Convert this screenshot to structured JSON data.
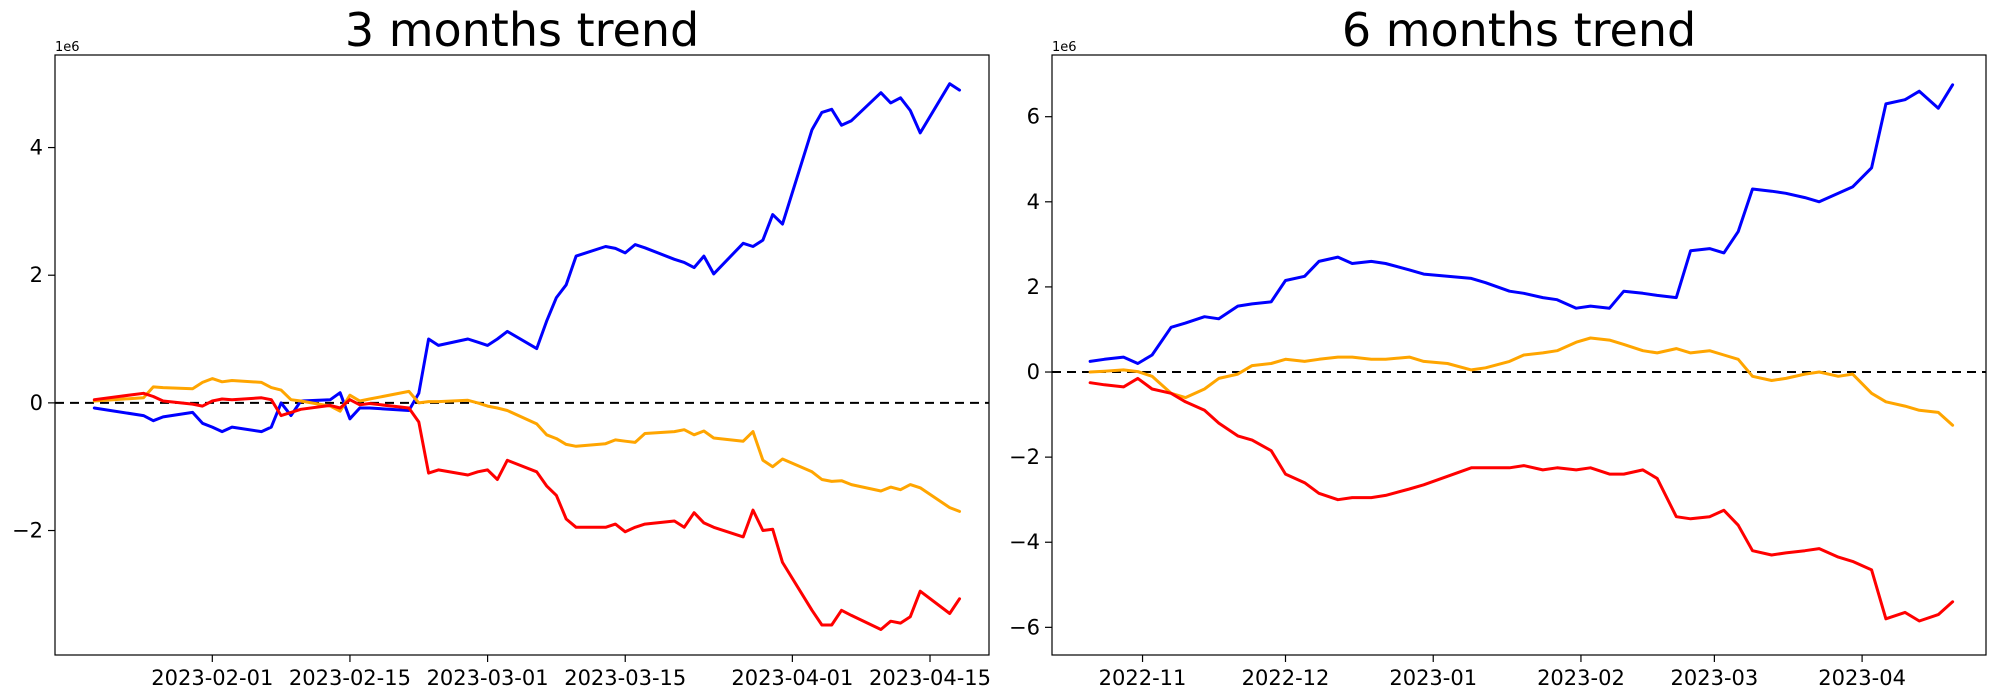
{
  "chart_data": [
    {
      "type": "line",
      "title": "3 months trend",
      "xlabel": "",
      "ylabel": "",
      "y_offset_label": "1e6",
      "x_type": "date",
      "xlim": [
        "2023-01-16",
        "2023-04-21"
      ],
      "ylim": [
        -3950000,
        5450000
      ],
      "x_ticks": [
        "2023-02-01",
        "2023-02-15",
        "2023-03-01",
        "2023-03-15",
        "2023-04-01",
        "2023-04-15"
      ],
      "y_ticks": [
        -2000000,
        0,
        2000000,
        4000000
      ],
      "y_tick_labels": [
        "−2",
        "0",
        "2",
        "4"
      ],
      "zero_reference_line": true,
      "grid": false,
      "legend": "none",
      "series": [
        {
          "color": "#0000ff",
          "x": [
            "2023-01-20",
            "2023-01-25",
            "2023-01-26",
            "2023-01-27",
            "2023-01-30",
            "2023-01-31",
            "2023-02-01",
            "2023-02-02",
            "2023-02-03",
            "2023-02-06",
            "2023-02-07",
            "2023-02-08",
            "2023-02-09",
            "2023-02-10",
            "2023-02-13",
            "2023-02-14",
            "2023-02-15",
            "2023-02-16",
            "2023-02-17",
            "2023-02-21",
            "2023-02-22",
            "2023-02-23",
            "2023-02-24",
            "2023-02-27",
            "2023-02-28",
            "2023-03-01",
            "2023-03-02",
            "2023-03-03",
            "2023-03-06",
            "2023-03-07",
            "2023-03-08",
            "2023-03-09",
            "2023-03-10",
            "2023-03-13",
            "2023-03-14",
            "2023-03-15",
            "2023-03-16",
            "2023-03-17",
            "2023-03-20",
            "2023-03-21",
            "2023-03-22",
            "2023-03-23",
            "2023-03-24",
            "2023-03-27",
            "2023-03-28",
            "2023-03-29",
            "2023-03-30",
            "2023-03-31",
            "2023-04-03",
            "2023-04-04",
            "2023-04-05",
            "2023-04-06",
            "2023-04-07",
            "2023-04-10",
            "2023-04-11",
            "2023-04-12",
            "2023-04-13",
            "2023-04-14",
            "2023-04-17",
            "2023-04-18"
          ],
          "y": [
            -80000,
            -200000,
            -280000,
            -220000,
            -150000,
            -320000,
            -380000,
            -450000,
            -380000,
            -450000,
            -380000,
            0,
            -200000,
            30000,
            50000,
            160000,
            -250000,
            -80000,
            -80000,
            -120000,
            150000,
            1000000,
            900000,
            1000000,
            950000,
            900000,
            1000000,
            1120000,
            850000,
            1280000,
            1650000,
            1850000,
            2300000,
            2450000,
            2420000,
            2350000,
            2480000,
            2430000,
            2250000,
            2200000,
            2120000,
            2300000,
            2020000,
            2500000,
            2450000,
            2550000,
            2950000,
            2800000,
            4280000,
            4550000,
            4600000,
            4350000,
            4420000,
            4860000,
            4700000,
            4780000,
            4580000,
            4230000,
            5000000,
            4900000
          ]
        },
        {
          "color": "#ffa500",
          "x": [
            "2023-01-20",
            "2023-01-25",
            "2023-01-26",
            "2023-01-27",
            "2023-01-30",
            "2023-01-31",
            "2023-02-01",
            "2023-02-02",
            "2023-02-03",
            "2023-02-06",
            "2023-02-07",
            "2023-02-08",
            "2023-02-09",
            "2023-02-10",
            "2023-02-13",
            "2023-02-14",
            "2023-02-15",
            "2023-02-16",
            "2023-02-17",
            "2023-02-21",
            "2023-02-22",
            "2023-02-23",
            "2023-02-24",
            "2023-02-27",
            "2023-02-28",
            "2023-03-01",
            "2023-03-02",
            "2023-03-03",
            "2023-03-06",
            "2023-03-07",
            "2023-03-08",
            "2023-03-09",
            "2023-03-10",
            "2023-03-13",
            "2023-03-14",
            "2023-03-15",
            "2023-03-16",
            "2023-03-17",
            "2023-03-20",
            "2023-03-21",
            "2023-03-22",
            "2023-03-23",
            "2023-03-24",
            "2023-03-27",
            "2023-03-28",
            "2023-03-29",
            "2023-03-30",
            "2023-03-31",
            "2023-04-03",
            "2023-04-04",
            "2023-04-05",
            "2023-04-06",
            "2023-04-07",
            "2023-04-10",
            "2023-04-11",
            "2023-04-12",
            "2023-04-13",
            "2023-04-14",
            "2023-04-17",
            "2023-04-18"
          ],
          "y": [
            30000,
            80000,
            250000,
            240000,
            220000,
            320000,
            380000,
            330000,
            350000,
            320000,
            240000,
            200000,
            50000,
            30000,
            -50000,
            -130000,
            120000,
            30000,
            60000,
            180000,
            0,
            20000,
            20000,
            40000,
            0,
            -50000,
            -80000,
            -120000,
            -330000,
            -500000,
            -560000,
            -650000,
            -680000,
            -640000,
            -580000,
            -600000,
            -620000,
            -480000,
            -450000,
            -420000,
            -500000,
            -440000,
            -550000,
            -600000,
            -450000,
            -900000,
            -1000000,
            -880000,
            -1080000,
            -1200000,
            -1230000,
            -1220000,
            -1280000,
            -1380000,
            -1320000,
            -1360000,
            -1280000,
            -1330000,
            -1640000,
            -1700000
          ]
        },
        {
          "color": "#ff0000",
          "x": [
            "2023-01-20",
            "2023-01-25",
            "2023-01-26",
            "2023-01-27",
            "2023-01-30",
            "2023-01-31",
            "2023-02-01",
            "2023-02-02",
            "2023-02-03",
            "2023-02-06",
            "2023-02-07",
            "2023-02-08",
            "2023-02-09",
            "2023-02-10",
            "2023-02-13",
            "2023-02-14",
            "2023-02-15",
            "2023-02-16",
            "2023-02-17",
            "2023-02-21",
            "2023-02-22",
            "2023-02-23",
            "2023-02-24",
            "2023-02-27",
            "2023-02-28",
            "2023-03-01",
            "2023-03-02",
            "2023-03-03",
            "2023-03-06",
            "2023-03-07",
            "2023-03-08",
            "2023-03-09",
            "2023-03-10",
            "2023-03-13",
            "2023-03-14",
            "2023-03-15",
            "2023-03-16",
            "2023-03-17",
            "2023-03-20",
            "2023-03-21",
            "2023-03-22",
            "2023-03-23",
            "2023-03-24",
            "2023-03-27",
            "2023-03-28",
            "2023-03-29",
            "2023-03-30",
            "2023-03-31",
            "2023-04-03",
            "2023-04-04",
            "2023-04-05",
            "2023-04-06",
            "2023-04-07",
            "2023-04-10",
            "2023-04-11",
            "2023-04-12",
            "2023-04-13",
            "2023-04-14",
            "2023-04-17",
            "2023-04-18"
          ],
          "y": [
            50000,
            150000,
            100000,
            30000,
            -20000,
            -50000,
            30000,
            60000,
            50000,
            80000,
            50000,
            -200000,
            -150000,
            -100000,
            -40000,
            -80000,
            50000,
            -30000,
            -10000,
            -80000,
            -300000,
            -1100000,
            -1050000,
            -1130000,
            -1080000,
            -1050000,
            -1200000,
            -900000,
            -1080000,
            -1300000,
            -1450000,
            -1820000,
            -1950000,
            -1950000,
            -1900000,
            -2020000,
            -1950000,
            -1900000,
            -1850000,
            -1950000,
            -1720000,
            -1880000,
            -1950000,
            -2100000,
            -1680000,
            -2000000,
            -1980000,
            -2500000,
            -3250000,
            -3480000,
            -3480000,
            -3250000,
            -3330000,
            -3550000,
            -3420000,
            -3450000,
            -3350000,
            -2950000,
            -3300000,
            -3070000
          ]
        }
      ]
    },
    {
      "type": "line",
      "title": "6 months trend",
      "xlabel": "",
      "ylabel": "",
      "y_offset_label": "1e6",
      "x_type": "date",
      "xlim": [
        "2022-10-13",
        "2023-04-27"
      ],
      "ylim": [
        -6650000,
        7450000
      ],
      "x_ticks": [
        "2022-11-01",
        "2022-12-01",
        "2023-01-01",
        "2023-02-01",
        "2023-03-01",
        "2023-04-01"
      ],
      "x_tick_labels": [
        "2022-11",
        "2022-12",
        "2023-01",
        "2023-02",
        "2023-03",
        "2023-04"
      ],
      "y_ticks": [
        -6000000,
        -4000000,
        -2000000,
        0,
        2000000,
        4000000,
        6000000
      ],
      "y_tick_labels": [
        "−6",
        "−4",
        "−2",
        "0",
        "2",
        "4",
        "6"
      ],
      "zero_reference_line": true,
      "grid": false,
      "legend": "none",
      "series": [
        {
          "color": "#0000ff",
          "x": [
            "2022-10-21",
            "2022-10-24",
            "2022-10-28",
            "2022-10-31",
            "2022-11-03",
            "2022-11-07",
            "2022-11-10",
            "2022-11-14",
            "2022-11-17",
            "2022-11-21",
            "2022-11-24",
            "2022-11-28",
            "2022-12-01",
            "2022-12-05",
            "2022-12-08",
            "2022-12-12",
            "2022-12-15",
            "2022-12-19",
            "2022-12-22",
            "2022-12-27",
            "2022-12-30",
            "2023-01-04",
            "2023-01-09",
            "2023-01-12",
            "2023-01-17",
            "2023-01-20",
            "2023-01-24",
            "2023-01-27",
            "2023-01-31",
            "2023-02-03",
            "2023-02-07",
            "2023-02-10",
            "2023-02-14",
            "2023-02-17",
            "2023-02-21",
            "2023-02-24",
            "2023-02-28",
            "2023-03-03",
            "2023-03-06",
            "2023-03-09",
            "2023-03-13",
            "2023-03-16",
            "2023-03-20",
            "2023-03-23",
            "2023-03-27",
            "2023-03-30",
            "2023-04-03",
            "2023-04-06",
            "2023-04-10",
            "2023-04-13",
            "2023-04-17",
            "2023-04-20"
          ],
          "y": [
            250000,
            300000,
            350000,
            200000,
            400000,
            1050000,
            1150000,
            1300000,
            1250000,
            1550000,
            1600000,
            1650000,
            2150000,
            2250000,
            2600000,
            2700000,
            2550000,
            2600000,
            2550000,
            2400000,
            2300000,
            2250000,
            2200000,
            2100000,
            1900000,
            1850000,
            1750000,
            1700000,
            1500000,
            1550000,
            1500000,
            1900000,
            1850000,
            1800000,
            1750000,
            2850000,
            2900000,
            2800000,
            3300000,
            4300000,
            4250000,
            4200000,
            4100000,
            4000000,
            4200000,
            4350000,
            4800000,
            6300000,
            6400000,
            6600000,
            6200000,
            6750000
          ]
        },
        {
          "color": "#ffa500",
          "x": [
            "2022-10-21",
            "2022-10-24",
            "2022-10-28",
            "2022-10-31",
            "2022-11-03",
            "2022-11-07",
            "2022-11-10",
            "2022-11-14",
            "2022-11-17",
            "2022-11-21",
            "2022-11-24",
            "2022-11-28",
            "2022-12-01",
            "2022-12-05",
            "2022-12-08",
            "2022-12-12",
            "2022-12-15",
            "2022-12-19",
            "2022-12-22",
            "2022-12-27",
            "2022-12-30",
            "2023-01-04",
            "2023-01-09",
            "2023-01-12",
            "2023-01-17",
            "2023-01-20",
            "2023-01-24",
            "2023-01-27",
            "2023-01-31",
            "2023-02-03",
            "2023-02-07",
            "2023-02-10",
            "2023-02-14",
            "2023-02-17",
            "2023-02-21",
            "2023-02-24",
            "2023-02-28",
            "2023-03-03",
            "2023-03-06",
            "2023-03-09",
            "2023-03-13",
            "2023-03-16",
            "2023-03-20",
            "2023-03-23",
            "2023-03-27",
            "2023-03-30",
            "2023-04-03",
            "2023-04-06",
            "2023-04-10",
            "2023-04-13",
            "2023-04-17",
            "2023-04-20"
          ],
          "y": [
            0,
            20000,
            50000,
            10000,
            -100000,
            -500000,
            -600000,
            -400000,
            -150000,
            -50000,
            150000,
            200000,
            300000,
            250000,
            300000,
            350000,
            350000,
            300000,
            300000,
            350000,
            250000,
            200000,
            50000,
            100000,
            250000,
            400000,
            450000,
            500000,
            700000,
            800000,
            750000,
            650000,
            500000,
            450000,
            550000,
            450000,
            500000,
            400000,
            300000,
            -100000,
            -200000,
            -150000,
            -50000,
            0,
            -100000,
            -50000,
            -500000,
            -700000,
            -800000,
            -900000,
            -950000,
            -1250000
          ]
        },
        {
          "color": "#ff0000",
          "x": [
            "2022-10-21",
            "2022-10-24",
            "2022-10-28",
            "2022-10-31",
            "2022-11-03",
            "2022-11-07",
            "2022-11-10",
            "2022-11-14",
            "2022-11-17",
            "2022-11-21",
            "2022-11-24",
            "2022-11-28",
            "2022-12-01",
            "2022-12-05",
            "2022-12-08",
            "2022-12-12",
            "2022-12-15",
            "2022-12-19",
            "2022-12-22",
            "2022-12-27",
            "2022-12-30",
            "2023-01-04",
            "2023-01-09",
            "2023-01-12",
            "2023-01-17",
            "2023-01-20",
            "2023-01-24",
            "2023-01-27",
            "2023-01-31",
            "2023-02-03",
            "2023-02-07",
            "2023-02-10",
            "2023-02-14",
            "2023-02-17",
            "2023-02-21",
            "2023-02-24",
            "2023-02-28",
            "2023-03-03",
            "2023-03-06",
            "2023-03-09",
            "2023-03-13",
            "2023-03-16",
            "2023-03-20",
            "2023-03-23",
            "2023-03-27",
            "2023-03-30",
            "2023-04-03",
            "2023-04-06",
            "2023-04-10",
            "2023-04-13",
            "2023-04-17",
            "2023-04-20"
          ],
          "y": [
            -250000,
            -300000,
            -350000,
            -150000,
            -400000,
            -500000,
            -700000,
            -900000,
            -1200000,
            -1500000,
            -1600000,
            -1850000,
            -2400000,
            -2600000,
            -2850000,
            -3000000,
            -2950000,
            -2950000,
            -2900000,
            -2750000,
            -2650000,
            -2450000,
            -2250000,
            -2250000,
            -2250000,
            -2200000,
            -2300000,
            -2250000,
            -2300000,
            -2250000,
            -2400000,
            -2400000,
            -2300000,
            -2500000,
            -3400000,
            -3450000,
            -3400000,
            -3250000,
            -3600000,
            -4200000,
            -4300000,
            -4250000,
            -4200000,
            -4150000,
            -4350000,
            -4450000,
            -4650000,
            -5800000,
            -5650000,
            -5850000,
            -5700000,
            -5400000
          ]
        }
      ]
    }
  ]
}
